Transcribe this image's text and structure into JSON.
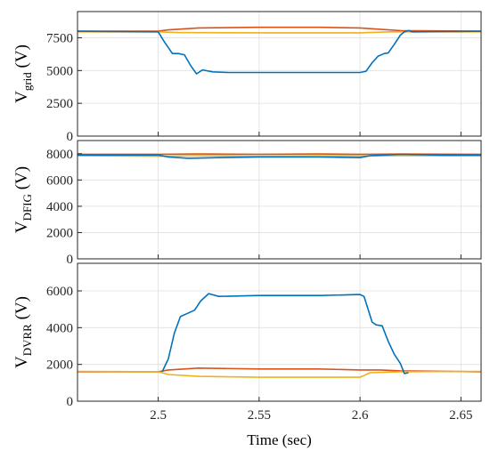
{
  "chart_data": [
    {
      "type": "line",
      "ylabel_main": "V",
      "ylabel_sub": "grid",
      "ylabel_unit": " (V)",
      "xlim": [
        2.46,
        2.66
      ],
      "ylim": [
        0,
        9500
      ],
      "xticks": [
        2.5,
        2.55,
        2.6,
        2.65
      ],
      "xtick_labels": [
        "",
        "",
        "",
        ""
      ],
      "yticks": [
        0,
        2500,
        5000,
        7500
      ],
      "ytick_labels": [
        "0",
        "2500",
        "5000",
        "7500"
      ],
      "grid": true,
      "series": [
        {
          "color": "#d95319",
          "x": [
            2.46,
            2.5,
            2.505,
            2.52,
            2.55,
            2.58,
            2.6,
            2.61,
            2.62,
            2.66
          ],
          "y": [
            8000,
            8000,
            8100,
            8250,
            8300,
            8300,
            8250,
            8150,
            8050,
            8000
          ]
        },
        {
          "color": "#edb120",
          "x": [
            2.46,
            2.5,
            2.51,
            2.55,
            2.6,
            2.615,
            2.625,
            2.66
          ],
          "y": [
            7950,
            7950,
            7900,
            7880,
            7880,
            7950,
            7950,
            7950
          ]
        },
        {
          "color": "#0072bd",
          "x": [
            2.46,
            2.5,
            2.503,
            2.507,
            2.51,
            2.513,
            2.516,
            2.519,
            2.522,
            2.527,
            2.535,
            2.55,
            2.58,
            2.6,
            2.603,
            2.606,
            2.609,
            2.612,
            2.614,
            2.617,
            2.62,
            2.622,
            2.624,
            2.626,
            2.66
          ],
          "y": [
            8000,
            7950,
            7200,
            6300,
            6300,
            6200,
            5400,
            4750,
            5050,
            4900,
            4850,
            4850,
            4850,
            4850,
            4950,
            5600,
            6100,
            6300,
            6350,
            7000,
            7700,
            7950,
            8050,
            7950,
            8000
          ]
        }
      ]
    },
    {
      "type": "line",
      "ylabel_main": "V",
      "ylabel_sub": "DFIG",
      "ylabel_unit": " (V)",
      "xlim": [
        2.46,
        2.66
      ],
      "ylim": [
        0,
        9000
      ],
      "xticks": [
        2.5,
        2.55,
        2.6,
        2.65
      ],
      "xtick_labels": [
        "",
        "",
        "",
        ""
      ],
      "yticks": [
        0,
        2000,
        4000,
        6000,
        8000
      ],
      "ytick_labels": [
        "0",
        "2000",
        "4000",
        "6000",
        "8000"
      ],
      "grid": true,
      "series": [
        {
          "color": "#d95319",
          "x": [
            2.46,
            2.5,
            2.52,
            2.55,
            2.58,
            2.6,
            2.62,
            2.66
          ],
          "y": [
            7950,
            7950,
            7980,
            7950,
            7980,
            7950,
            7970,
            7950
          ]
        },
        {
          "color": "#edb120",
          "x": [
            2.46,
            2.5,
            2.52,
            2.55,
            2.58,
            2.6,
            2.62,
            2.66
          ],
          "y": [
            7850,
            7800,
            7850,
            7800,
            7850,
            7820,
            7850,
            7830
          ]
        },
        {
          "color": "#0072bd",
          "x": [
            2.46,
            2.5,
            2.505,
            2.515,
            2.53,
            2.55,
            2.58,
            2.6,
            2.605,
            2.62,
            2.64,
            2.66
          ],
          "y": [
            7900,
            7900,
            7750,
            7650,
            7700,
            7750,
            7750,
            7700,
            7850,
            7950,
            7900,
            7900
          ]
        }
      ]
    },
    {
      "type": "line",
      "ylabel_main": "V",
      "ylabel_sub": "DVRR",
      "ylabel_unit": " (V)",
      "xlabel": "Time (sec)",
      "xlim": [
        2.46,
        2.66
      ],
      "ylim": [
        0,
        7500
      ],
      "xticks": [
        2.5,
        2.55,
        2.6,
        2.65
      ],
      "xtick_labels": [
        "2.5",
        "2.55",
        "2.6",
        "2.65"
      ],
      "yticks": [
        0,
        2000,
        4000,
        6000
      ],
      "ytick_labels": [
        "0",
        "2000",
        "4000",
        "6000"
      ],
      "grid": true,
      "series": [
        {
          "color": "#d95319",
          "x": [
            2.46,
            2.5,
            2.505,
            2.52,
            2.55,
            2.58,
            2.6,
            2.61,
            2.62,
            2.66
          ],
          "y": [
            1600,
            1600,
            1700,
            1800,
            1750,
            1750,
            1700,
            1700,
            1650,
            1600
          ]
        },
        {
          "color": "#edb120",
          "x": [
            2.46,
            2.5,
            2.505,
            2.52,
            2.55,
            2.58,
            2.6,
            2.605,
            2.62,
            2.66
          ],
          "y": [
            1620,
            1600,
            1450,
            1350,
            1300,
            1300,
            1300,
            1550,
            1600,
            1620
          ]
        },
        {
          "color": "#0072bd",
          "x": [
            2.502,
            2.505,
            2.508,
            2.511,
            2.514,
            2.518,
            2.521,
            2.525,
            2.53,
            2.55,
            2.58,
            2.6,
            2.602,
            2.604,
            2.606,
            2.608,
            2.611,
            2.614,
            2.617,
            2.62,
            2.622,
            2.624
          ],
          "y": [
            1600,
            2300,
            3700,
            4600,
            4750,
            4950,
            5450,
            5850,
            5700,
            5750,
            5750,
            5800,
            5700,
            5000,
            4300,
            4150,
            4100,
            3250,
            2550,
            2050,
            1500,
            1550
          ]
        }
      ]
    }
  ]
}
